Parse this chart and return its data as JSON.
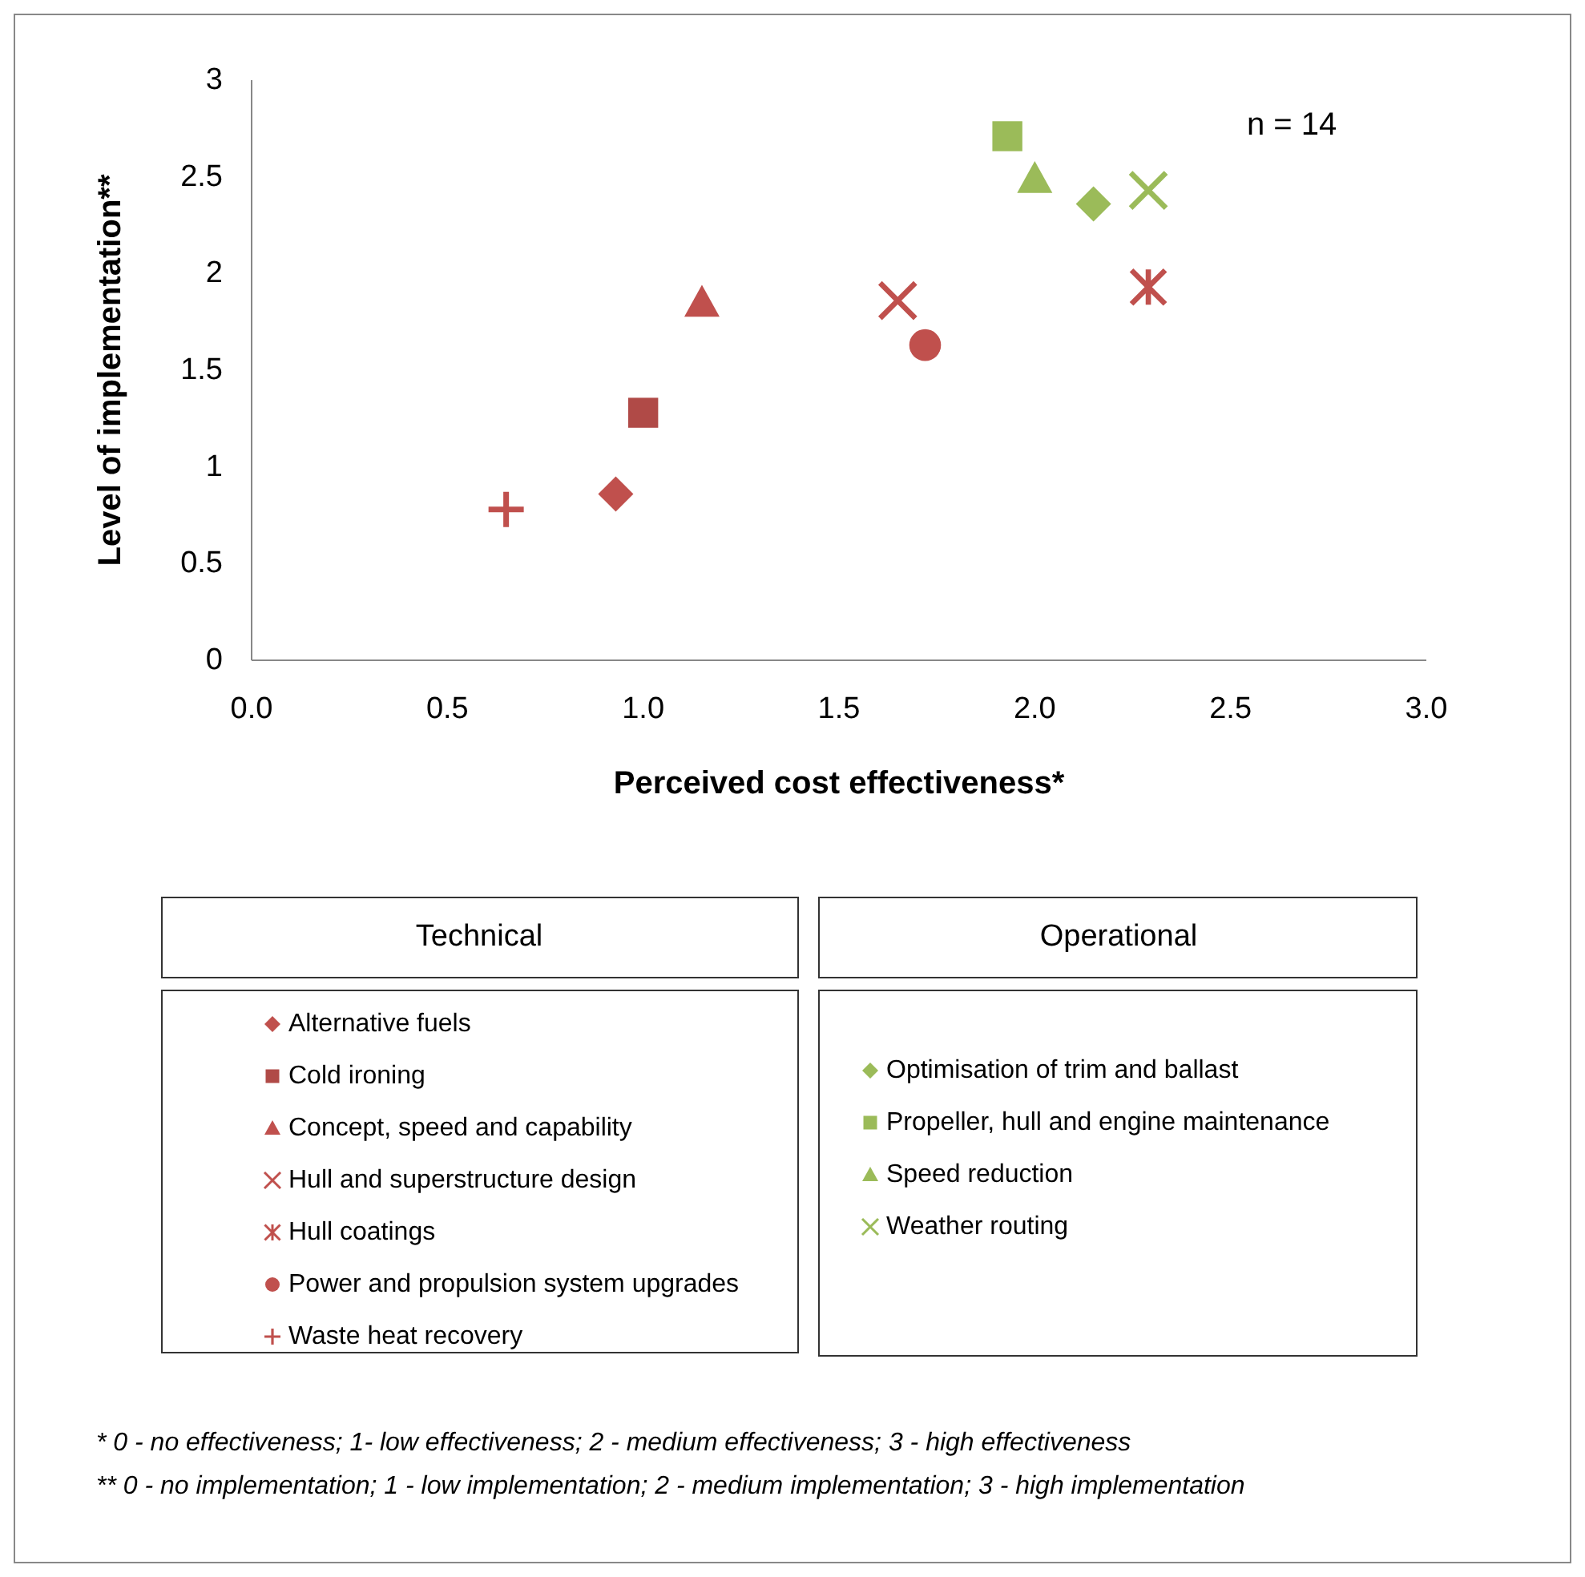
{
  "chart_data": {
    "type": "scatter",
    "xlabel": "Perceived cost effectiveness*",
    "ylabel": "Level of implementation**",
    "xlim": [
      0,
      3
    ],
    "xticks": [
      {
        "value": 0,
        "label": "0.0"
      },
      {
        "value": 0.5,
        "label": "0.5"
      },
      {
        "value": 1,
        "label": "1.0"
      },
      {
        "value": 1.5,
        "label": "1.5"
      },
      {
        "value": 2,
        "label": "2.0"
      },
      {
        "value": 2.5,
        "label": "2.5"
      },
      {
        "value": 3,
        "label": "3.0"
      }
    ],
    "ylim": [
      0,
      3
    ],
    "yticks": [
      0,
      0.5,
      1,
      1.5,
      2,
      2.5,
      3
    ],
    "grid": false,
    "legend": "bottom",
    "annotations": [
      "n = 14",
      "Technical",
      "Operational",
      "* 0 - no effectiveness; 1- low effectiveness; 2 - medium effectiveness; 3 - high effectiveness",
      "** 0 - no implementation; 1 - low implementation; 2 - medium implementation; 3 - high implementation"
    ],
    "series": [
      {
        "name": "Alternative fuels",
        "color": "#c0504d",
        "marker": "diamond",
        "x": [
          0.93
        ],
        "values": [
          0.86
        ]
      },
      {
        "name": "Cold ironing",
        "color": "#b04a47",
        "marker": "square",
        "x": [
          1.0
        ],
        "values": [
          1.28
        ]
      },
      {
        "name": "Concept, speed and capability",
        "color": "#c0504d",
        "marker": "triangle",
        "x": [
          1.15
        ],
        "values": [
          1.85
        ]
      },
      {
        "name": "Hull and superstructure design",
        "color": "#c0504d",
        "marker": "x",
        "x": [
          1.65
        ],
        "values": [
          1.86
        ]
      },
      {
        "name": "Hull coatings",
        "color": "#c0504d",
        "marker": "star",
        "x": [
          2.29
        ],
        "values": [
          1.93
        ]
      },
      {
        "name": "Power and propulsion system upgrades",
        "color": "#c0504d",
        "marker": "circle",
        "x": [
          1.72
        ],
        "values": [
          1.63
        ]
      },
      {
        "name": "Waste heat recovery",
        "color": "#c0504d",
        "marker": "cross",
        "x": [
          0.65
        ],
        "values": [
          0.78
        ]
      },
      {
        "name": "Optimisation of trim and ballast",
        "color": "#9bbb59",
        "marker": "diamond",
        "x": [
          2.15
        ],
        "values": [
          2.36
        ]
      },
      {
        "name": "Propeller, hull and engine maintenance",
        "color": "#9bbb59",
        "marker": "square",
        "x": [
          1.93
        ],
        "values": [
          2.71
        ]
      },
      {
        "name": "Speed reduction",
        "color": "#9bbb59",
        "marker": "triangle",
        "x": [
          2.0
        ],
        "values": [
          2.49
        ]
      },
      {
        "name": "Weather routing",
        "color": "#9bbb59",
        "marker": "x",
        "x": [
          2.29
        ],
        "values": [
          2.43
        ]
      }
    ]
  }
}
